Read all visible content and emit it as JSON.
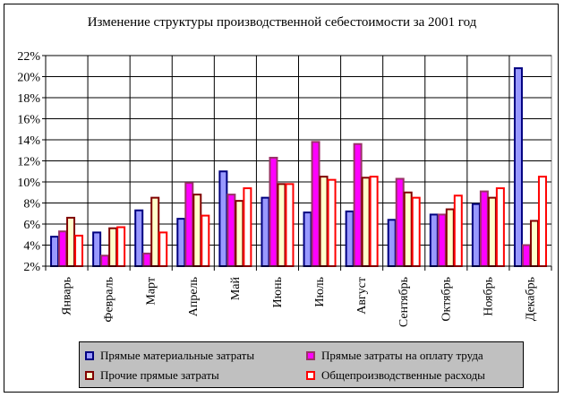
{
  "chart_data": {
    "type": "bar",
    "title": "Изменение структуры производственной себестоимости за 2001 год",
    "categories": [
      "Январь",
      "Февраль",
      "Март",
      "Апрель",
      "Май",
      "Июнь",
      "Июль",
      "Август",
      "Сентябрь",
      "Октябрь",
      "Ноябрь",
      "Декабрь"
    ],
    "y_ticks": [
      "2%",
      "4%",
      "6%",
      "8%",
      "10%",
      "12%",
      "14%",
      "16%",
      "18%",
      "20%",
      "22%"
    ],
    "ylim": [
      2,
      22
    ],
    "grid": true,
    "legend_position": "bottom",
    "series": [
      {
        "name": "Прямые материальные затраты",
        "fill": "#9999ff",
        "stroke": "#000080",
        "values": [
          4.8,
          5.2,
          7.3,
          6.5,
          11.0,
          8.5,
          7.1,
          7.2,
          6.4,
          6.9,
          7.9,
          20.8
        ]
      },
      {
        "name": "Прямые затраты на оплату труда",
        "fill": "#ff00ff",
        "stroke": "#993366",
        "values": [
          5.3,
          3.0,
          3.2,
          9.9,
          8.8,
          12.3,
          13.8,
          13.6,
          10.3,
          6.9,
          9.1,
          4.0
        ]
      },
      {
        "name": "Прочие прямые затраты",
        "fill": "#ffffcc",
        "stroke": "#800000",
        "values": [
          6.6,
          5.6,
          8.5,
          8.8,
          8.2,
          9.8,
          10.5,
          10.4,
          9.0,
          7.4,
          8.5,
          6.3
        ]
      },
      {
        "name": "Общепроизводственные расходы",
        "fill": "#ffffff",
        "stroke": "#ff0000",
        "values": [
          4.9,
          5.7,
          5.2,
          6.8,
          9.4,
          9.8,
          10.2,
          10.5,
          8.5,
          8.7,
          9.4,
          10.5
        ]
      }
    ]
  }
}
